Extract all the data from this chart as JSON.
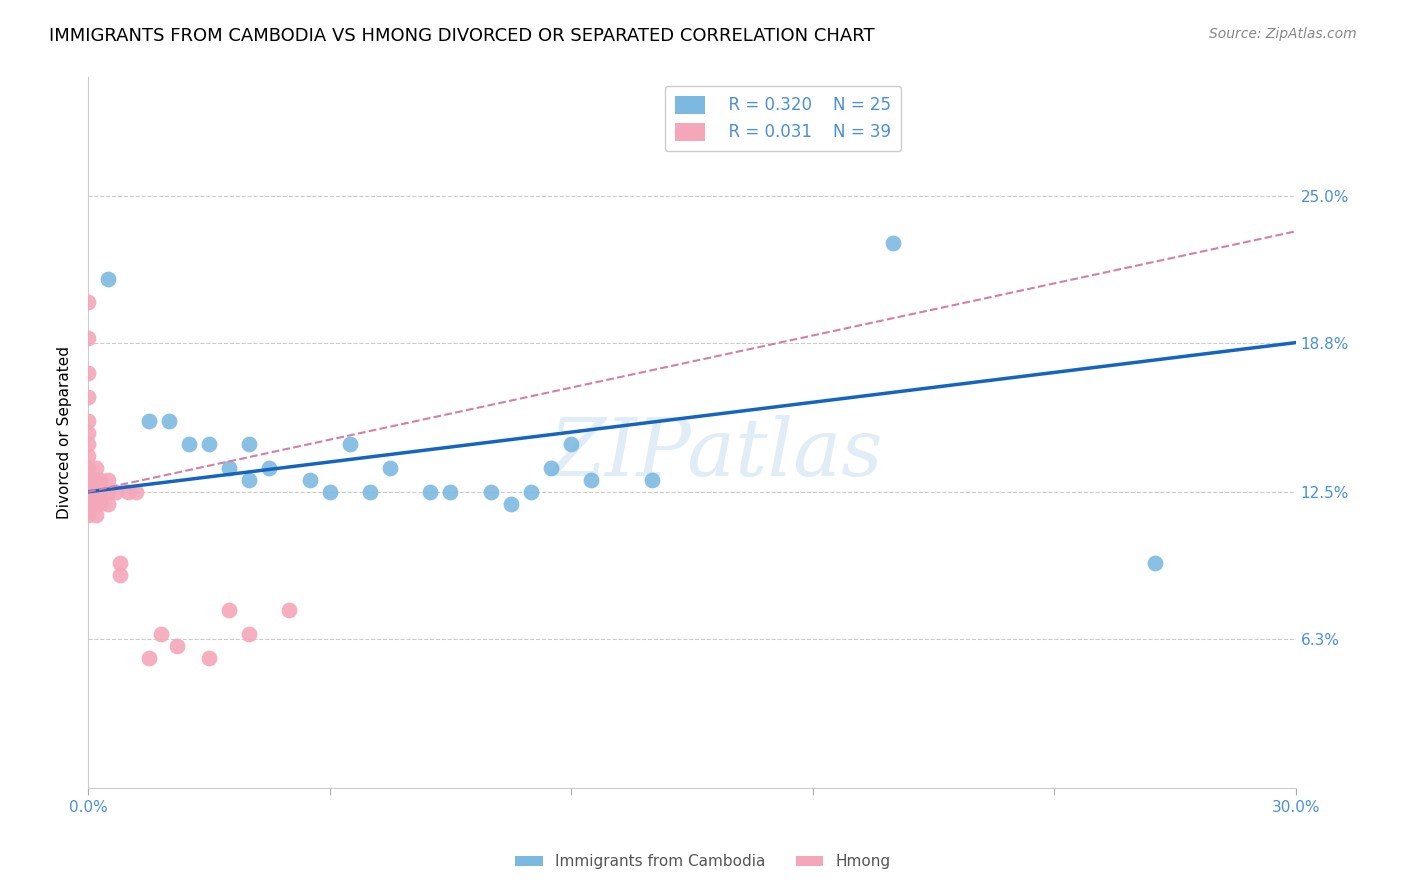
{
  "title": "IMMIGRANTS FROM CAMBODIA VS HMONG DIVORCED OR SEPARATED CORRELATION CHART",
  "source": "Source: ZipAtlas.com",
  "ylabel": "Divorced or Separated",
  "xlim": [
    0.0,
    0.3
  ],
  "ylim": [
    0.0,
    0.3
  ],
  "ytick_values": [
    0.0,
    0.063,
    0.125,
    0.188,
    0.25
  ],
  "ytick_labels": [
    "",
    "6.3%",
    "12.5%",
    "18.8%",
    "25.0%"
  ],
  "xtick_vals": [
    0.0,
    0.06,
    0.12,
    0.18,
    0.24,
    0.3
  ],
  "xtick_labels": [
    "0.0%",
    "",
    "",
    "",
    "",
    "30.0%"
  ],
  "legend_r_blue": "R = 0.320",
  "legend_n_blue": "N = 25",
  "legend_r_pink": "R = 0.031",
  "legend_n_pink": "N = 39",
  "blue_color": "#7cb9e0",
  "pink_color": "#f4a7b9",
  "blue_line_color": "#1565c0",
  "pink_line_color": "#d47fa6",
  "watermark": "ZIPatlas",
  "cambodia_x": [
    0.005,
    0.015,
    0.02,
    0.025,
    0.03,
    0.035,
    0.04,
    0.04,
    0.045,
    0.055,
    0.06,
    0.065,
    0.07,
    0.075,
    0.085,
    0.09,
    0.1,
    0.105,
    0.11,
    0.115,
    0.12,
    0.125,
    0.14,
    0.2,
    0.265
  ],
  "cambodia_y": [
    0.215,
    0.155,
    0.155,
    0.145,
    0.145,
    0.135,
    0.13,
    0.145,
    0.135,
    0.13,
    0.125,
    0.145,
    0.125,
    0.135,
    0.125,
    0.125,
    0.125,
    0.12,
    0.125,
    0.135,
    0.145,
    0.13,
    0.13,
    0.23,
    0.095
  ],
  "hmong_x": [
    0.0,
    0.0,
    0.0,
    0.0,
    0.0,
    0.0,
    0.0,
    0.0,
    0.0,
    0.0,
    0.0,
    0.0,
    0.0,
    0.0,
    0.002,
    0.002,
    0.002,
    0.002,
    0.002,
    0.002,
    0.002,
    0.003,
    0.003,
    0.003,
    0.005,
    0.005,
    0.005,
    0.007,
    0.008,
    0.008,
    0.01,
    0.012,
    0.015,
    0.018,
    0.022,
    0.03,
    0.035,
    0.04,
    0.05
  ],
  "hmong_y": [
    0.205,
    0.19,
    0.175,
    0.165,
    0.155,
    0.15,
    0.145,
    0.14,
    0.135,
    0.13,
    0.13,
    0.125,
    0.12,
    0.115,
    0.135,
    0.13,
    0.13,
    0.125,
    0.12,
    0.12,
    0.115,
    0.13,
    0.125,
    0.12,
    0.13,
    0.125,
    0.12,
    0.125,
    0.095,
    0.09,
    0.125,
    0.125,
    0.055,
    0.065,
    0.06,
    0.055,
    0.075,
    0.065,
    0.075
  ],
  "blue_line_x": [
    0.0,
    0.3
  ],
  "blue_line_y": [
    0.125,
    0.188
  ],
  "pink_line_x": [
    0.0,
    0.3
  ],
  "pink_line_y": [
    0.125,
    0.235
  ],
  "grid_color": "#cccccc",
  "bg_color": "#ffffff",
  "title_fontsize": 13,
  "tick_fontsize": 11,
  "legend_fontsize": 12
}
